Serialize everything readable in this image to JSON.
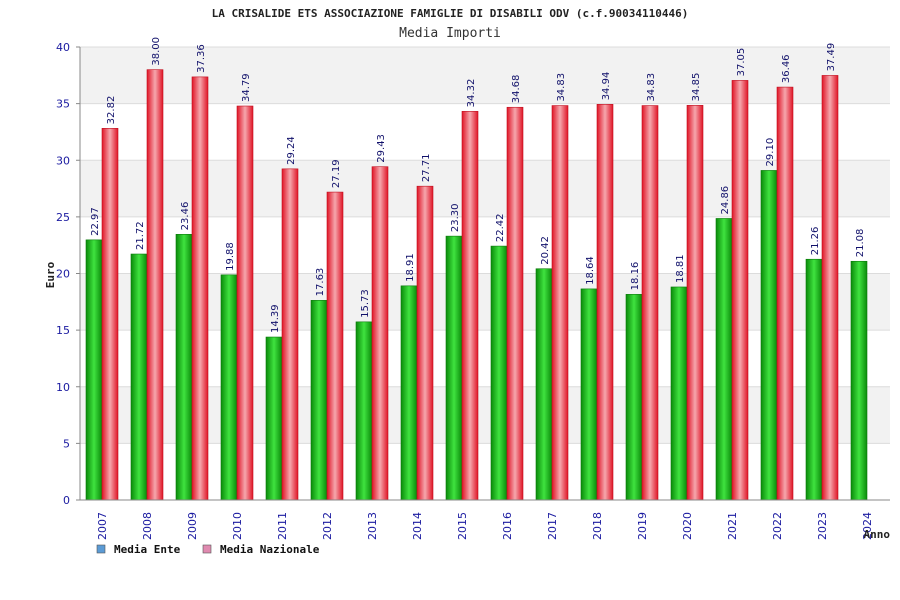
{
  "chart_data": {
    "type": "bar",
    "title": "LA CRISALIDE ETS ASSOCIAZIONE FAMIGLIE DI DISABILI ODV (c.f.90034110446)",
    "subtitle": "Media Importi",
    "ylabel": "Euro",
    "xlabel": "Anno",
    "ylim": [
      0,
      40
    ],
    "yticks": [
      "0",
      "5",
      "10",
      "15",
      "20",
      "25",
      "30",
      "35",
      "40"
    ],
    "grid": true,
    "legend_position": "bottom-left",
    "categories": [
      "2007",
      "2008",
      "2009",
      "2010",
      "2011",
      "2012",
      "2013",
      "2014",
      "2015",
      "2016",
      "2017",
      "2018",
      "2019",
      "2020",
      "2021",
      "2022",
      "2023",
      "2024"
    ],
    "series": [
      {
        "name": "Media Ente",
        "legend_color": "#5b9bd5",
        "bar_color": "#14b814",
        "values": [
          22.97,
          21.72,
          23.46,
          19.88,
          14.39,
          17.63,
          15.73,
          18.91,
          23.3,
          22.42,
          20.42,
          18.64,
          18.16,
          18.81,
          24.86,
          29.1,
          21.26,
          21.08
        ],
        "labels": [
          "22.97",
          "21.72",
          "23.46",
          "19.88",
          "14.39",
          "17.63",
          "15.73",
          "18.91",
          "23.30",
          "22.42",
          "20.42",
          "18.64",
          "18.16",
          "18.81",
          "24.86",
          "29.10",
          "21.26",
          "21.08"
        ]
      },
      {
        "name": "Media Nazionale",
        "legend_color": "#e08ab0",
        "bar_color": "#ee2a3a",
        "values": [
          32.82,
          38.0,
          37.36,
          34.79,
          29.24,
          27.19,
          29.43,
          27.71,
          34.32,
          34.68,
          34.83,
          34.94,
          34.83,
          34.85,
          37.05,
          36.46,
          37.49,
          null
        ],
        "labels": [
          "32.82",
          "38.00",
          "37.36",
          "34.79",
          "29.24",
          "27.19",
          "29.43",
          "27.71",
          "34.32",
          "34.68",
          "34.83",
          "34.94",
          "34.83",
          "34.85",
          "37.05",
          "36.46",
          "37.49",
          null
        ]
      }
    ]
  }
}
